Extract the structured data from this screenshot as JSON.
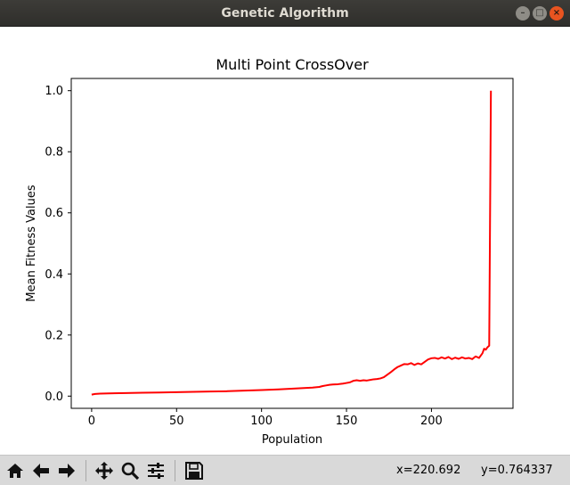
{
  "window": {
    "title": "Genetic Algorithm",
    "controls": {
      "minimize": "–",
      "maximize": "□",
      "close": "×"
    }
  },
  "colors": {
    "line": "#ff0000",
    "close_button": "#e95420",
    "titlebar": "#3c3b37",
    "toolbar": "#d9d9d9"
  },
  "toolbar": {
    "buttons": [
      "home-icon",
      "back-icon",
      "forward-icon",
      "pan-icon",
      "zoom-icon",
      "configure-subplots-icon",
      "save-icon"
    ],
    "x_readout": "x=220.692",
    "y_readout": "y=0.764337"
  },
  "chart_data": {
    "type": "line",
    "title": "Multi Point CrossOver",
    "xlabel": "Population",
    "ylabel": "Mean Fitness Values",
    "xlim": [
      -12,
      248
    ],
    "ylim": [
      -0.04,
      1.04
    ],
    "xticks": [
      0,
      50,
      100,
      150,
      200
    ],
    "yticks": [
      0.0,
      0.2,
      0.4,
      0.6,
      0.8,
      1.0
    ],
    "xtick_labels": [
      "0",
      "50",
      "100",
      "150",
      "200"
    ],
    "ytick_labels": [
      "0.0",
      "0.2",
      "0.4",
      "0.6",
      "0.8",
      "1.0"
    ],
    "grid": false,
    "series": [
      {
        "name": "Mean Fitness",
        "color": "#ff0000",
        "x": [
          0,
          2,
          5,
          10,
          20,
          30,
          40,
          50,
          60,
          70,
          80,
          90,
          100,
          110,
          120,
          130,
          134,
          136,
          138,
          140,
          142,
          145,
          148,
          150,
          152,
          154,
          156,
          158,
          160,
          162,
          164,
          166,
          168,
          170,
          172,
          174,
          176,
          178,
          180,
          182,
          184,
          186,
          188,
          190,
          192,
          194,
          196,
          198,
          200,
          202,
          204,
          206,
          208,
          210,
          212,
          214,
          216,
          218,
          220,
          222,
          224,
          226,
          228,
          230,
          231,
          232,
          233,
          234,
          235
        ],
        "values": [
          0.005,
          0.007,
          0.008,
          0.009,
          0.01,
          0.011,
          0.012,
          0.013,
          0.014,
          0.015,
          0.016,
          0.018,
          0.02,
          0.022,
          0.025,
          0.028,
          0.03,
          0.033,
          0.035,
          0.037,
          0.038,
          0.039,
          0.041,
          0.043,
          0.045,
          0.05,
          0.052,
          0.05,
          0.052,
          0.051,
          0.053,
          0.055,
          0.056,
          0.058,
          0.062,
          0.07,
          0.078,
          0.087,
          0.095,
          0.1,
          0.105,
          0.104,
          0.108,
          0.102,
          0.107,
          0.104,
          0.112,
          0.12,
          0.124,
          0.125,
          0.122,
          0.127,
          0.123,
          0.128,
          0.121,
          0.126,
          0.122,
          0.127,
          0.123,
          0.125,
          0.121,
          0.13,
          0.125,
          0.14,
          0.155,
          0.152,
          0.16,
          0.165,
          1.0
        ]
      }
    ]
  }
}
